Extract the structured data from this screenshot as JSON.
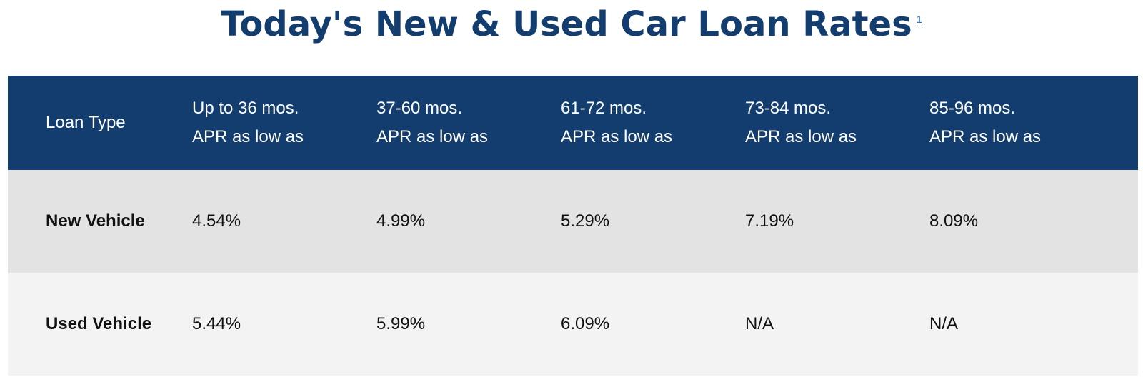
{
  "title": {
    "text": "Today's New & Used Car Loan Rates",
    "footnote": "1"
  },
  "colors": {
    "title": "#123d6e",
    "header_bg": "#123d6e",
    "header_text": "#ffffff",
    "row_new_bg": "#e4e3e4",
    "row_used_bg": "#f3f3f3",
    "footnote_link": "#2a6fb8"
  },
  "table": {
    "columns": [
      {
        "line1": "Loan Type",
        "line2": ""
      },
      {
        "line1": "Up to 36 mos.",
        "line2": "APR as low as"
      },
      {
        "line1": "37-60 mos.",
        "line2": "APR as low as"
      },
      {
        "line1": "61-72 mos.",
        "line2": "APR as low as"
      },
      {
        "line1": "73-84 mos.",
        "line2": "APR as low as"
      },
      {
        "line1": "85-96 mos.",
        "line2": "APR as low as"
      }
    ],
    "rows": [
      {
        "label": "New Vehicle",
        "values": [
          "4.54%",
          "4.99%",
          "5.29%",
          "7.19%",
          "8.09%"
        ]
      },
      {
        "label": "Used Vehicle",
        "values": [
          "5.44%",
          "5.99%",
          "6.09%",
          "N/A",
          "N/A"
        ]
      }
    ]
  }
}
